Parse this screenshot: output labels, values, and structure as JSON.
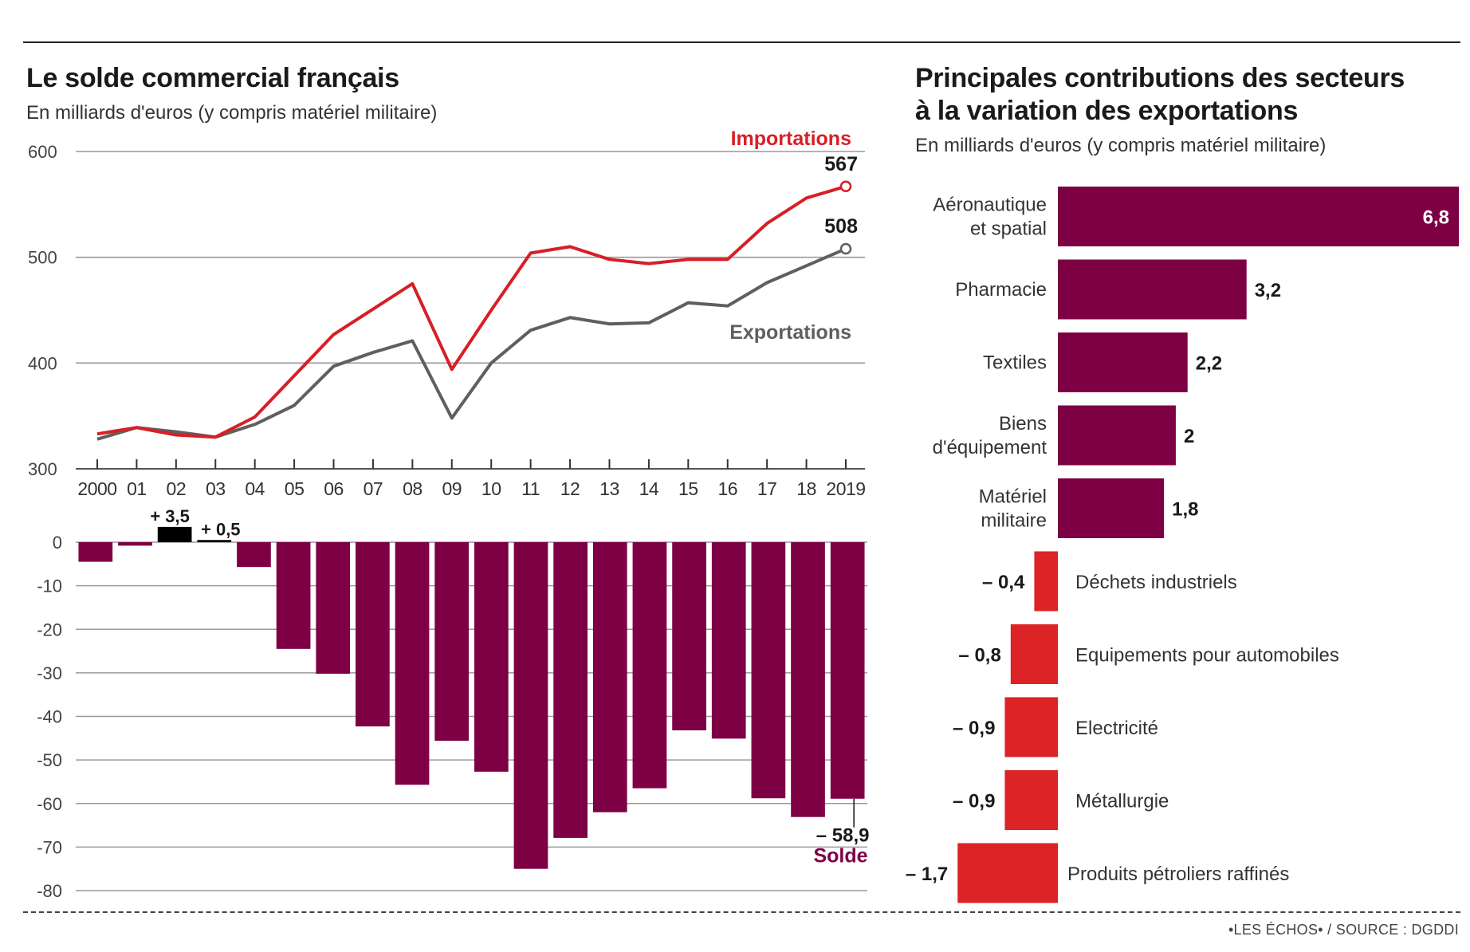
{
  "left_panel": {
    "title": "Le solde commercial français",
    "subtitle": "En milliards d'euros (y compris matériel militaire)"
  },
  "right_panel": {
    "title_line1": "Principales contributions des secteurs",
    "title_line2": "à la variation des exportations",
    "subtitle": "En milliards d'euros (y compris matériel militaire)"
  },
  "source": "•LES ÉCHOS• / SOURCE : DGDDI",
  "colors": {
    "imports": "#d71f26",
    "exports": "#5f5f5f",
    "solde": "#7d0044",
    "solde_positive": "#000000",
    "positive_contribution": "#7d0044",
    "negative_contribution": "#dc2326",
    "grid": "#9a9a9a"
  },
  "chart_data": [
    {
      "type": "line",
      "title": "Le solde commercial français",
      "subtitle": "En milliards d'euros (y compris matériel militaire)",
      "x": [
        "2000",
        "01",
        "02",
        "03",
        "04",
        "05",
        "06",
        "07",
        "08",
        "09",
        "10",
        "11",
        "12",
        "13",
        "14",
        "15",
        "16",
        "17",
        "18",
        "2019"
      ],
      "series": [
        {
          "name": "Importations",
          "values": [
            333,
            339,
            332,
            330,
            349,
            388,
            427,
            451,
            475,
            394,
            450,
            504,
            510,
            498,
            494,
            498,
            498,
            532,
            556,
            567
          ],
          "end_label": "567"
        },
        {
          "name": "Exportations",
          "values": [
            328,
            339,
            335,
            330,
            342,
            360,
            397,
            410,
            421,
            348,
            400,
            431,
            443,
            437,
            438,
            457,
            454,
            476,
            492,
            508
          ],
          "end_label": "508"
        }
      ],
      "ylim": [
        300,
        600
      ],
      "yticks": [
        "600",
        "500",
        "400",
        "300"
      ],
      "ytick_values": [
        600,
        500,
        400,
        300
      ],
      "grid": true
    },
    {
      "type": "bar",
      "title": "Solde",
      "categories": [
        "2000",
        "01",
        "02",
        "03",
        "04",
        "05",
        "06",
        "07",
        "08",
        "09",
        "10",
        "11",
        "12",
        "13",
        "14",
        "15",
        "16",
        "17",
        "18",
        "2019"
      ],
      "values": [
        -4.5,
        -0.8,
        3.5,
        0.5,
        -5.7,
        -24.5,
        -30.2,
        -42.3,
        -55.7,
        -45.6,
        -52.7,
        -75.0,
        -67.9,
        -62.0,
        -56.5,
        -43.2,
        -45.1,
        -58.8,
        -63.1,
        -58.9
      ],
      "data_labels": [
        {
          "index": 2,
          "text": "+ 3,5"
        },
        {
          "index": 3,
          "text": "+ 0,5"
        },
        {
          "index": 19,
          "text": "– 58,9"
        }
      ],
      "series_label": "Solde",
      "ylim": [
        -80,
        0
      ],
      "yticks": [
        "0",
        "-10",
        "-20",
        "-30",
        "-40",
        "-50",
        "-60",
        "-70",
        "-80"
      ],
      "ytick_values": [
        0,
        -10,
        -20,
        -30,
        -40,
        -50,
        -60,
        -70,
        -80
      ],
      "grid": true
    },
    {
      "type": "bar",
      "orientation": "horizontal",
      "title": "Principales contributions des secteurs à la variation des exportations",
      "subtitle": "En milliards d'euros (y compris matériel militaire)",
      "categories": [
        [
          "Aéronautique",
          "et spatial"
        ],
        [
          "Pharmacie"
        ],
        [
          "Textiles"
        ],
        [
          "Biens",
          "d'équipement"
        ],
        [
          "Matériel",
          "militaire"
        ],
        [
          "Déchets industriels"
        ],
        [
          "Equipements pour automobiles"
        ],
        [
          "Electricité"
        ],
        [
          "Métallurgie"
        ],
        [
          "Produits pétroliers raffinés"
        ]
      ],
      "values": [
        6.8,
        3.2,
        2.2,
        2.0,
        1.8,
        -0.4,
        -0.8,
        -0.9,
        -0.9,
        -1.7
      ],
      "value_labels": [
        "6,8",
        "3,2",
        "2,2",
        "2",
        "1,8",
        "– 0,4",
        "– 0,8",
        "– 0,9",
        "– 0,9",
        "– 1,7"
      ],
      "xlim": [
        -1.7,
        6.8
      ]
    }
  ]
}
